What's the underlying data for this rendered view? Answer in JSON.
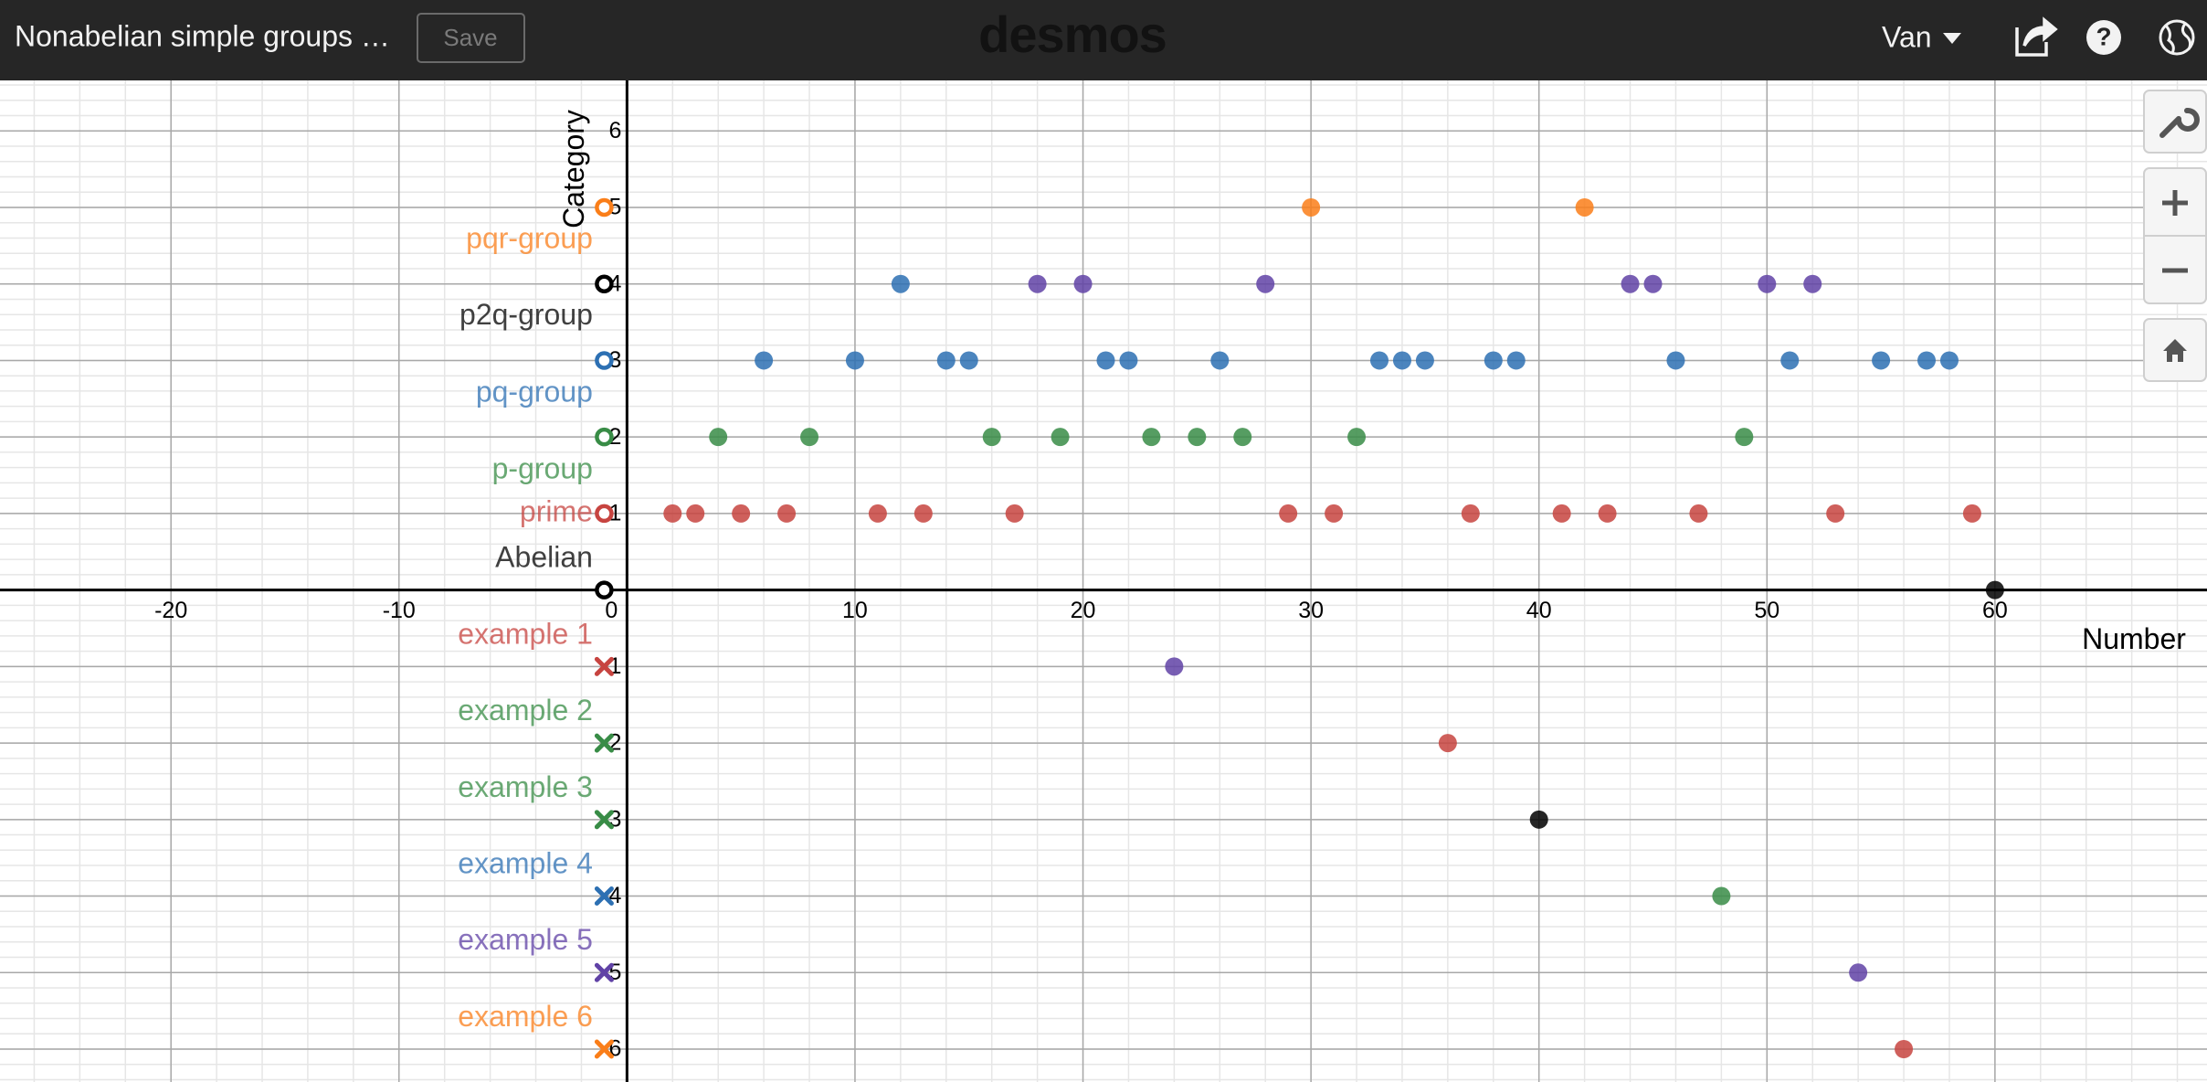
{
  "header": {
    "title": "Nonabelian simple groups …",
    "save": "Save",
    "logo": "desmos",
    "user": "Van"
  },
  "chart_data": {
    "type": "scatter",
    "xlabel": "Number",
    "ylabel": "Category",
    "xlim": [
      -27.5,
      69.3
    ],
    "ylim": [
      -6.43,
      6.66
    ],
    "xticks": [
      -20,
      -10,
      0,
      10,
      20,
      30,
      40,
      50,
      60
    ],
    "yticks": [
      -6,
      -5,
      -4,
      -3,
      -2,
      -1,
      1,
      2,
      3,
      4,
      5,
      6
    ],
    "grid": true,
    "minor_xstep": 2,
    "minor_ystep": 0.2,
    "series": [
      {
        "color": "#c74440",
        "x": [
          2,
          3,
          5,
          7,
          11,
          13,
          17,
          29,
          31,
          37,
          41,
          43,
          47,
          53,
          59,
          36,
          56
        ],
        "y": [
          1,
          1,
          1,
          1,
          1,
          1,
          1,
          1,
          1,
          1,
          1,
          1,
          1,
          1,
          1,
          -2,
          -6
        ]
      },
      {
        "color": "#388c46",
        "x": [
          4,
          8,
          16,
          19,
          23,
          25,
          27,
          32,
          49,
          48
        ],
        "y": [
          2,
          2,
          2,
          2,
          2,
          2,
          2,
          2,
          2,
          -4
        ]
      },
      {
        "color": "#2d70b3",
        "x": [
          6,
          10,
          14,
          15,
          21,
          22,
          26,
          33,
          34,
          35,
          38,
          39,
          46,
          51,
          55,
          57,
          58,
          12
        ],
        "y": [
          3,
          3,
          3,
          3,
          3,
          3,
          3,
          3,
          3,
          3,
          3,
          3,
          3,
          3,
          3,
          3,
          3,
          4
        ]
      },
      {
        "color": "#6042a6",
        "x": [
          18,
          20,
          28,
          44,
          45,
          50,
          52,
          24,
          54
        ],
        "y": [
          4,
          4,
          4,
          4,
          4,
          4,
          4,
          -1,
          -5
        ]
      },
      {
        "color": "#fa7e19",
        "x": [
          30,
          42
        ],
        "y": [
          5,
          5
        ]
      },
      {
        "color": "#000000",
        "x": [
          60,
          40
        ],
        "y": [
          0,
          -3
        ]
      }
    ],
    "markers": [
      {
        "x": -1,
        "y": 5,
        "color": "#fa7e19",
        "shape": "open-circle"
      },
      {
        "x": -1,
        "y": 4,
        "color": "#000000",
        "shape": "open-circle"
      },
      {
        "x": -1,
        "y": 3,
        "color": "#2d70b3",
        "shape": "open-circle"
      },
      {
        "x": -1,
        "y": 2,
        "color": "#388c46",
        "shape": "open-circle"
      },
      {
        "x": -1,
        "y": 1,
        "color": "#c74440",
        "shape": "open-circle"
      },
      {
        "x": -1,
        "y": 0,
        "color": "#000000",
        "shape": "open-circle"
      },
      {
        "x": -1,
        "y": -1,
        "color": "#c74440",
        "shape": "cross"
      },
      {
        "x": -1,
        "y": -2,
        "color": "#388c46",
        "shape": "cross"
      },
      {
        "x": -1,
        "y": -3,
        "color": "#388c46",
        "shape": "cross"
      },
      {
        "x": -1,
        "y": -4,
        "color": "#2d70b3",
        "shape": "cross"
      },
      {
        "x": -1,
        "y": -5,
        "color": "#6042a6",
        "shape": "cross"
      },
      {
        "x": -1,
        "y": -6,
        "color": "#fa7e19",
        "shape": "cross"
      }
    ],
    "labels": [
      {
        "text": "pqr-group",
        "color": "#fa7e19",
        "x": -1.5,
        "y": 4.57
      },
      {
        "text": "p2q-group",
        "color": "#000000",
        "x": -1.5,
        "y": 3.57
      },
      {
        "text": "pq-group",
        "color": "#2d70b3",
        "x": -1.5,
        "y": 2.56
      },
      {
        "text": "p-group",
        "color": "#388c46",
        "x": -1.5,
        "y": 1.56
      },
      {
        "text": "prime",
        "color": "#c74440",
        "x": -1.5,
        "y": 1.0
      },
      {
        "text": "Abelian",
        "color": "#000000",
        "x": -1.5,
        "y": 0.4
      },
      {
        "text": "example 1",
        "color": "#c74440",
        "x": -1.5,
        "y": -0.6
      },
      {
        "text": "example 2",
        "color": "#388c46",
        "x": -1.5,
        "y": -1.6
      },
      {
        "text": "example 3",
        "color": "#388c46",
        "x": -1.5,
        "y": -2.6
      },
      {
        "text": "example 4",
        "color": "#2d70b3",
        "x": -1.5,
        "y": -3.6
      },
      {
        "text": "example 5",
        "color": "#6042a6",
        "x": -1.5,
        "y": -4.6
      },
      {
        "text": "example 6",
        "color": "#fa7e19",
        "x": -1.5,
        "y": -5.6
      }
    ]
  }
}
